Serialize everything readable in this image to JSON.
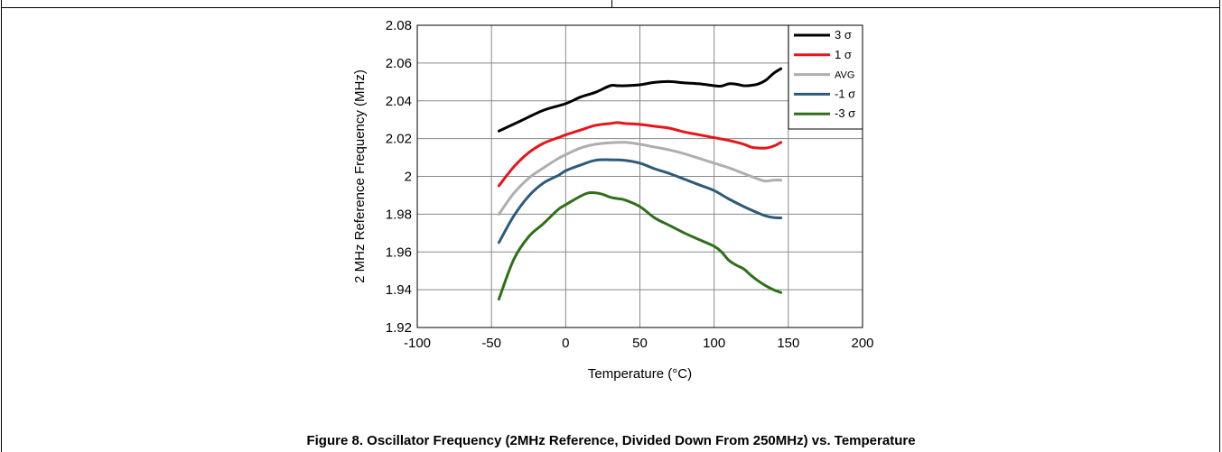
{
  "caption": "Figure 8. Oscillator Frequency (2MHz Reference, Divided Down From 250MHz) vs. Temperature",
  "chart_data": {
    "type": "line",
    "title": "",
    "xlabel": "Temperature (°C)",
    "ylabel": "2 MHz Reference Frequency (MHz)",
    "xlim": [
      -100,
      200
    ],
    "ylim": [
      1.92,
      2.08
    ],
    "x_ticks": [
      -100,
      -50,
      0,
      50,
      100,
      150,
      200
    ],
    "y_ticks": [
      1.92,
      1.94,
      1.96,
      1.98,
      2,
      2.02,
      2.04,
      2.06,
      2.08
    ],
    "x_tick_labels": [
      "-100",
      "-50",
      "0",
      "50",
      "100",
      "150",
      "200"
    ],
    "y_tick_labels": [
      "1.92",
      "1.94",
      "1.96",
      "1.98",
      "2",
      "2.02",
      "2.04",
      "2.06",
      "2.08"
    ],
    "grid": true,
    "legend_position": "top-right",
    "series": [
      {
        "name": "3 σ",
        "color": "#000000",
        "x": [
          -45,
          -30,
          -15,
          0,
          10,
          20,
          30,
          35,
          40,
          50,
          60,
          70,
          80,
          90,
          100,
          105,
          110,
          115,
          120,
          125,
          130,
          135,
          140,
          145
        ],
        "y": [
          2.024,
          2.0295,
          2.035,
          2.0385,
          2.042,
          2.0445,
          2.048,
          2.048,
          2.048,
          2.0485,
          2.0498,
          2.0502,
          2.0495,
          2.049,
          2.048,
          2.0478,
          2.049,
          2.0488,
          2.048,
          2.0482,
          2.049,
          2.051,
          2.0545,
          2.057
        ]
      },
      {
        "name": "1 σ",
        "color": "#e8141b",
        "x": [
          -45,
          -35,
          -25,
          -15,
          -5,
          0,
          10,
          20,
          30,
          35,
          40,
          50,
          60,
          70,
          80,
          90,
          100,
          110,
          120,
          125,
          130,
          135,
          140,
          145
        ],
        "y": [
          1.995,
          2.005,
          2.0125,
          2.0175,
          2.0205,
          2.022,
          2.0245,
          2.027,
          2.028,
          2.0285,
          2.028,
          2.0275,
          2.0265,
          2.0255,
          2.0235,
          2.022,
          2.0205,
          2.019,
          2.017,
          2.0155,
          2.015,
          2.015,
          2.016,
          2.018
        ]
      },
      {
        "name": "AVG",
        "color": "#aeaeae",
        "x": [
          -45,
          -35,
          -25,
          -15,
          -5,
          0,
          10,
          20,
          30,
          40,
          50,
          60,
          70,
          80,
          90,
          100,
          110,
          120,
          130,
          135,
          140,
          145
        ],
        "y": [
          1.98,
          1.991,
          1.999,
          2.0045,
          2.0095,
          2.0115,
          2.015,
          2.017,
          2.0178,
          2.018,
          2.017,
          2.0155,
          2.014,
          2.012,
          2.0095,
          2.007,
          2.0045,
          2.0015,
          1.9985,
          1.9975,
          1.998,
          1.998
        ]
      },
      {
        "name": "-1 σ",
        "color": "#2e5a7a",
        "x": [
          -45,
          -35,
          -25,
          -15,
          -5,
          0,
          10,
          20,
          30,
          40,
          50,
          60,
          70,
          80,
          90,
          100,
          110,
          120,
          130,
          135,
          140,
          145
        ],
        "y": [
          1.965,
          1.979,
          1.9895,
          1.9965,
          2.0005,
          2.003,
          2.006,
          2.0085,
          2.0088,
          2.0085,
          2.007,
          2.004,
          2.0015,
          1.9985,
          1.9955,
          1.9925,
          1.988,
          1.984,
          1.9805,
          1.979,
          1.9782,
          1.978
        ]
      },
      {
        "name": "-3 σ",
        "color": "#2f6f19",
        "x": [
          -45,
          -35,
          -25,
          -15,
          -5,
          0,
          10,
          15,
          20,
          25,
          30,
          35,
          40,
          50,
          60,
          70,
          80,
          90,
          100,
          105,
          110,
          115,
          120,
          125,
          130,
          135,
          140,
          145
        ],
        "y": [
          1.935,
          1.956,
          1.968,
          1.975,
          1.9825,
          1.985,
          1.9895,
          1.9912,
          1.9913,
          1.9905,
          1.989,
          1.9882,
          1.9875,
          1.984,
          1.978,
          1.974,
          1.97,
          1.9665,
          1.963,
          1.96,
          1.9555,
          1.953,
          1.951,
          1.9475,
          1.9445,
          1.942,
          1.94,
          1.9385
        ]
      }
    ]
  }
}
